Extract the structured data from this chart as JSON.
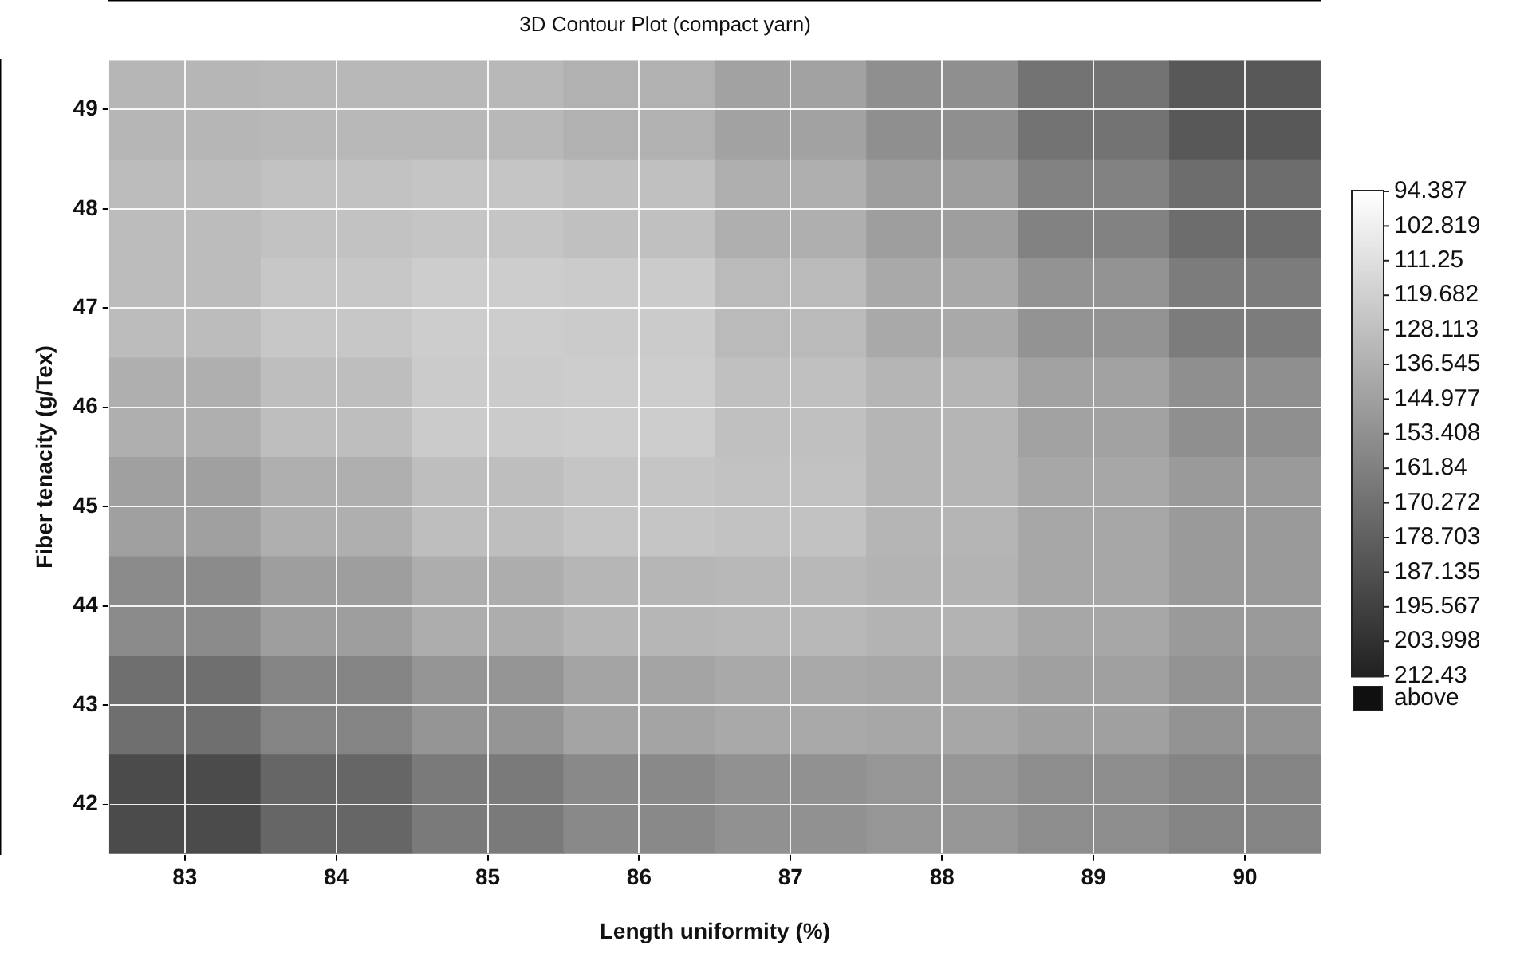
{
  "chart_data": {
    "type": "heatmap",
    "title": "3D Contour Plot (compact yarn)",
    "xlabel": "Length uniformity (%)",
    "ylabel": "Fiber tenacity (g/Tex)",
    "categories": [
      "83",
      "84",
      "85",
      "86",
      "87",
      "88",
      "89",
      "90"
    ],
    "y_categories": [
      "49",
      "48",
      "47",
      "46",
      "45",
      "44",
      "43",
      "42"
    ],
    "grid": true,
    "clim": [
      94.387,
      212.43
    ],
    "cticks": [
      94.387,
      102.819,
      111.25,
      119.682,
      128.113,
      136.545,
      144.977,
      153.408,
      161.84,
      170.272,
      178.703,
      187.135,
      195.567,
      203.998,
      212.43
    ],
    "annotations": [
      "above"
    ],
    "cells": [
      [
        133,
        132,
        132,
        136,
        144,
        154,
        169,
        183
      ],
      [
        130,
        127,
        125,
        128,
        137,
        146,
        161,
        172
      ],
      [
        130,
        124,
        121,
        122,
        131,
        140,
        152,
        164
      ],
      [
        137,
        129,
        122,
        121,
        128,
        134,
        144,
        154
      ],
      [
        145,
        137,
        129,
        125,
        127,
        134,
        141,
        148
      ],
      [
        156,
        146,
        138,
        133,
        132,
        135,
        141,
        148
      ],
      [
        171,
        160,
        151,
        143,
        140,
        141,
        145,
        152
      ],
      [
        190,
        176,
        165,
        157,
        153,
        150,
        155,
        160
      ]
    ]
  }
}
